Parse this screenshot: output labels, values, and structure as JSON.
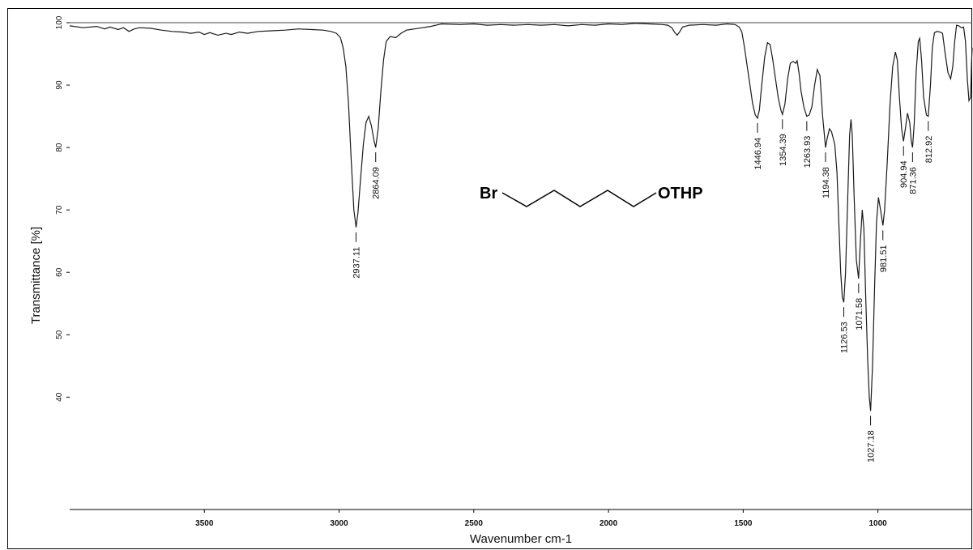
{
  "chart_data": {
    "type": "line",
    "title": "",
    "xlabel": "Wavenumber cm-1",
    "ylabel": "Transmittance [%]",
    "xlim": [
      4000,
      650
    ],
    "ylim": [
      22,
      100
    ],
    "x_reversed": true,
    "x_ticks": [
      "3500",
      "3000",
      "2500",
      "2000",
      "1500",
      "1000"
    ],
    "y_ticks": [
      "100",
      "90",
      "80",
      "70",
      "60",
      "50",
      "40"
    ],
    "grid": false,
    "reference_line_y": 100,
    "series": [
      {
        "color": "#1a1a1a",
        "points": [
          [
            4000,
            99.5
          ],
          [
            3950,
            99.2
          ],
          [
            3900,
            99.4
          ],
          [
            3870,
            99.0
          ],
          [
            3850,
            99.3
          ],
          [
            3820,
            98.9
          ],
          [
            3800,
            99.2
          ],
          [
            3780,
            98.6
          ],
          [
            3760,
            99.0
          ],
          [
            3740,
            99.2
          ],
          [
            3700,
            99.1
          ],
          [
            3660,
            98.8
          ],
          [
            3620,
            98.6
          ],
          [
            3580,
            98.5
          ],
          [
            3550,
            98.3
          ],
          [
            3520,
            98.5
          ],
          [
            3500,
            98.1
          ],
          [
            3480,
            98.4
          ],
          [
            3450,
            98.0
          ],
          [
            3420,
            98.3
          ],
          [
            3400,
            98.1
          ],
          [
            3370,
            98.5
          ],
          [
            3340,
            98.3
          ],
          [
            3300,
            98.6
          ],
          [
            3250,
            98.7
          ],
          [
            3200,
            98.8
          ],
          [
            3150,
            99.0
          ],
          [
            3100,
            98.9
          ],
          [
            3060,
            98.8
          ],
          [
            3030,
            98.6
          ],
          [
            3010,
            98.3
          ],
          [
            2995,
            97.6
          ],
          [
            2985,
            96.0
          ],
          [
            2975,
            93.0
          ],
          [
            2965,
            87.0
          ],
          [
            2955,
            78.0
          ],
          [
            2945,
            70.0
          ],
          [
            2937.11,
            67.2
          ],
          [
            2930,
            69.5
          ],
          [
            2920,
            75.0
          ],
          [
            2910,
            80.5
          ],
          [
            2900,
            84.0
          ],
          [
            2890,
            85.0
          ],
          [
            2880,
            83.5
          ],
          [
            2870,
            81.0
          ],
          [
            2864.09,
            80.0
          ],
          [
            2855,
            83.0
          ],
          [
            2845,
            89.0
          ],
          [
            2835,
            94.0
          ],
          [
            2825,
            97.0
          ],
          [
            2810,
            97.8
          ],
          [
            2790,
            97.6
          ],
          [
            2770,
            98.3
          ],
          [
            2750,
            98.8
          ],
          [
            2720,
            99.0
          ],
          [
            2690,
            99.2
          ],
          [
            2660,
            99.4
          ],
          [
            2640,
            99.6
          ],
          [
            2620,
            99.8
          ],
          [
            2550,
            99.7
          ],
          [
            2500,
            99.8
          ],
          [
            2450,
            99.6
          ],
          [
            2400,
            99.7
          ],
          [
            2350,
            99.6
          ],
          [
            2300,
            99.7
          ],
          [
            2250,
            99.6
          ],
          [
            2200,
            99.7
          ],
          [
            2150,
            99.5
          ],
          [
            2100,
            99.7
          ],
          [
            2050,
            99.6
          ],
          [
            2000,
            99.8
          ],
          [
            1950,
            99.7
          ],
          [
            1900,
            99.9
          ],
          [
            1850,
            99.8
          ],
          [
            1800,
            99.7
          ],
          [
            1780,
            99.6
          ],
          [
            1765,
            99.2
          ],
          [
            1755,
            98.5
          ],
          [
            1745,
            98.0
          ],
          [
            1735,
            98.6
          ],
          [
            1725,
            99.3
          ],
          [
            1700,
            99.6
          ],
          [
            1650,
            99.7
          ],
          [
            1600,
            99.6
          ],
          [
            1560,
            99.8
          ],
          [
            1530,
            99.7
          ],
          [
            1515,
            99.3
          ],
          [
            1505,
            98.5
          ],
          [
            1495,
            96.0
          ],
          [
            1485,
            93.0
          ],
          [
            1475,
            90.0
          ],
          [
            1465,
            87.0
          ],
          [
            1455,
            85.2
          ],
          [
            1446.94,
            84.7
          ],
          [
            1440,
            86.0
          ],
          [
            1430,
            90.5
          ],
          [
            1420,
            94.5
          ],
          [
            1410,
            96.8
          ],
          [
            1400,
            96.5
          ],
          [
            1390,
            94.0
          ],
          [
            1380,
            91.0
          ],
          [
            1370,
            88.0
          ],
          [
            1360,
            86.0
          ],
          [
            1354.39,
            85.3
          ],
          [
            1345,
            87.0
          ],
          [
            1335,
            91.0
          ],
          [
            1325,
            93.5
          ],
          [
            1315,
            93.8
          ],
          [
            1305,
            93.5
          ],
          [
            1300,
            93.9
          ],
          [
            1293,
            92.0
          ],
          [
            1285,
            89.0
          ],
          [
            1275,
            86.5
          ],
          [
            1263.93,
            85.0
          ],
          [
            1255,
            85.2
          ],
          [
            1245,
            86.5
          ],
          [
            1235,
            90.0
          ],
          [
            1225,
            92.5
          ],
          [
            1215,
            91.5
          ],
          [
            1205,
            85.0
          ],
          [
            1194.38,
            80.0
          ],
          [
            1188,
            81.5
          ],
          [
            1180,
            83.0
          ],
          [
            1172,
            82.5
          ],
          [
            1166,
            81.5
          ],
          [
            1160,
            80.5
          ],
          [
            1152,
            76.0
          ],
          [
            1145,
            68.0
          ],
          [
            1138,
            60.0
          ],
          [
            1132,
            56.0
          ],
          [
            1126.53,
            55.2
          ],
          [
            1120,
            60.0
          ],
          [
            1112,
            72.0
          ],
          [
            1105,
            82.0
          ],
          [
            1100,
            84.5
          ],
          [
            1095,
            82.0
          ],
          [
            1088,
            72.0
          ],
          [
            1080,
            62.0
          ],
          [
            1071.58,
            59.0
          ],
          [
            1065,
            65.0
          ],
          [
            1058,
            70.0
          ],
          [
            1052,
            67.0
          ],
          [
            1045,
            56.0
          ],
          [
            1038,
            46.0
          ],
          [
            1032,
            40.0
          ],
          [
            1027.18,
            37.8
          ],
          [
            1020,
            45.0
          ],
          [
            1012,
            58.0
          ],
          [
            1005,
            68.0
          ],
          [
            998,
            72.0
          ],
          [
            990,
            70.0
          ],
          [
            981.51,
            67.5
          ],
          [
            975,
            70.0
          ],
          [
            965,
            78.0
          ],
          [
            955,
            87.0
          ],
          [
            945,
            93.0
          ],
          [
            935,
            95.3
          ],
          [
            928,
            94.0
          ],
          [
            920,
            88.0
          ],
          [
            912,
            83.0
          ],
          [
            904.94,
            81.0
          ],
          [
            898,
            83.0
          ],
          [
            890,
            85.5
          ],
          [
            882,
            84.0
          ],
          [
            876,
            81.0
          ],
          [
            871.36,
            80.0
          ],
          [
            865,
            84.0
          ],
          [
            858,
            92.0
          ],
          [
            850,
            97.0
          ],
          [
            845,
            97.5
          ],
          [
            838,
            94.0
          ],
          [
            830,
            88.0
          ],
          [
            820,
            85.2
          ],
          [
            812.92,
            85.0
          ],
          [
            805,
            90.0
          ],
          [
            798,
            96.0
          ],
          [
            790,
            98.4
          ],
          [
            780,
            98.6
          ],
          [
            770,
            98.5
          ],
          [
            760,
            98.3
          ],
          [
            750,
            95.0
          ],
          [
            740,
            92.0
          ],
          [
            730,
            91.0
          ],
          [
            722,
            93.0
          ],
          [
            715,
            97.0
          ],
          [
            708,
            99.6
          ],
          [
            700,
            99.5
          ],
          [
            690,
            99.2
          ],
          [
            682,
            99.3
          ],
          [
            675,
            97.0
          ],
          [
            668,
            91.0
          ],
          [
            662,
            87.5
          ],
          [
            656,
            88.0
          ],
          [
            652,
            94.0
          ],
          [
            650,
            96.0
          ]
        ]
      }
    ],
    "peak_labels": [
      {
        "x": 2937.11,
        "y": 67.2,
        "label": "2937.11"
      },
      {
        "x": 2864.09,
        "y": 80.0,
        "label": "2864.09"
      },
      {
        "x": 1446.94,
        "y": 84.7,
        "label": "1446.94"
      },
      {
        "x": 1354.39,
        "y": 85.3,
        "label": "1354.39"
      },
      {
        "x": 1263.93,
        "y": 85.0,
        "label": "1263.93"
      },
      {
        "x": 1194.38,
        "y": 80.0,
        "label": "1194.38"
      },
      {
        "x": 1126.53,
        "y": 55.2,
        "label": "1126.53"
      },
      {
        "x": 1071.58,
        "y": 59.0,
        "label": "1071.58"
      },
      {
        "x": 1027.18,
        "y": 37.8,
        "label": "1027.18"
      },
      {
        "x": 981.51,
        "y": 67.5,
        "label": "981.51"
      },
      {
        "x": 904.94,
        "y": 81.0,
        "label": "904.94"
      },
      {
        "x": 871.36,
        "y": 80.0,
        "label": "871.36"
      },
      {
        "x": 812.92,
        "y": 85.0,
        "label": "812.92"
      }
    ],
    "structure": {
      "left_group": "Br",
      "right_group": "OTHP"
    }
  }
}
